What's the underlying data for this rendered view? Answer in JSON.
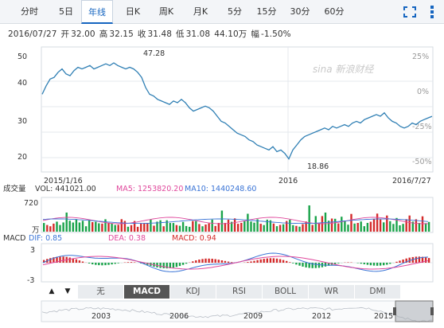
{
  "tabs": [
    "分时",
    "5日",
    "年线",
    "日K",
    "周K",
    "月K",
    "5分",
    "15分",
    "30分",
    "60分"
  ],
  "active_tab": 2,
  "icons": {
    "fullscreen": "fullscreen-icon",
    "more": "more-vertical-icon"
  },
  "quote": {
    "date": "2016/07/27",
    "open_label": "开",
    "open": "32.00",
    "high_label": "高",
    "high": "32.15",
    "close_label": "收",
    "close": "31.48",
    "low_label": "低",
    "low": "31.08",
    "volume": "44.10万",
    "change_label": "幅",
    "change": "-1.50%"
  },
  "watermark": "sina 新浪财经",
  "colors": {
    "price_line": "#2f7fb4",
    "up": "#d42b2b",
    "down": "#1aa34a",
    "dif": "#3a74d6",
    "dea": "#e0489c",
    "active_tab": "#1565c0"
  },
  "price_chart": {
    "y_ticks": [
      "50",
      "40",
      "30",
      "20"
    ],
    "y_ticks_right": [
      "25%",
      "0%",
      "-25%",
      "-50%"
    ],
    "max_label": "47.28",
    "min_label": "18.86",
    "x_start": "2015/1/16",
    "x_mid": "2016",
    "x_end": "2016/7/27"
  },
  "volume_panel": {
    "title": "成交量",
    "vol": "VOL: 441021.00",
    "ma5": "MA5: 1253820.20",
    "ma10": "MA10: 1440248.60",
    "top_tick": "720",
    "unit": "万"
  },
  "macd_panel": {
    "title": "MACD",
    "dif": "DIF: 0.85",
    "dea": "DEA: 0.38",
    "macd": "MACD: 0.94",
    "top_tick": "3",
    "bottom_tick": "-3"
  },
  "indicator_tabs": [
    "无",
    "MACD",
    "KDJ",
    "RSI",
    "BOLL",
    "WR",
    "DMI"
  ],
  "active_indicator": 1,
  "nav_left": "▲",
  "nav_right": "▼",
  "overview_years": [
    "2003",
    "2006",
    "2009",
    "2012",
    "2015"
  ],
  "chart_data": {
    "type": "line",
    "title": "",
    "x_range": [
      "2015/1/16",
      "2016/7/27"
    ],
    "ylabel": "",
    "ylim": [
      15,
      52
    ],
    "series": [
      {
        "values": [
          38.0,
          40.5,
          42.5,
          43.0,
          44.5,
          45.5,
          44.0,
          43.5,
          45.0,
          46.0,
          45.5,
          46.0,
          46.5,
          45.5,
          46.0,
          46.5,
          47.0,
          46.5,
          47.28,
          46.5,
          46.0,
          45.5,
          46.0,
          45.5,
          44.5,
          43.0,
          40.0,
          38.0,
          37.5,
          36.5,
          36.0,
          35.5,
          35.0,
          36.0,
          35.5,
          36.5,
          35.5,
          34.0,
          33.0,
          33.5,
          34.0,
          34.5,
          34.0,
          33.0,
          31.5,
          30.0,
          29.5,
          28.5,
          27.5,
          26.5,
          26.0,
          25.5,
          24.5,
          24.0,
          23.0,
          22.5,
          22.0,
          21.5,
          22.5,
          21.0,
          21.5,
          20.5,
          18.86,
          21.5,
          23.0,
          24.5,
          25.5,
          26.0,
          26.5,
          27.0,
          27.5,
          28.0,
          27.5,
          28.5,
          28.0,
          28.5,
          29.0,
          28.5,
          29.5,
          30.0,
          29.5,
          30.5,
          31.0,
          31.5,
          32.0,
          31.5,
          32.5,
          31.0,
          30.0,
          29.5,
          28.5,
          28.0,
          28.5,
          29.5,
          29.0,
          30.0,
          30.5,
          31.0,
          31.48
        ]
      }
    ],
    "annotations": [
      {
        "label": "47.28",
        "value": 47.28
      },
      {
        "label": "18.86",
        "value": 18.86
      }
    ]
  }
}
